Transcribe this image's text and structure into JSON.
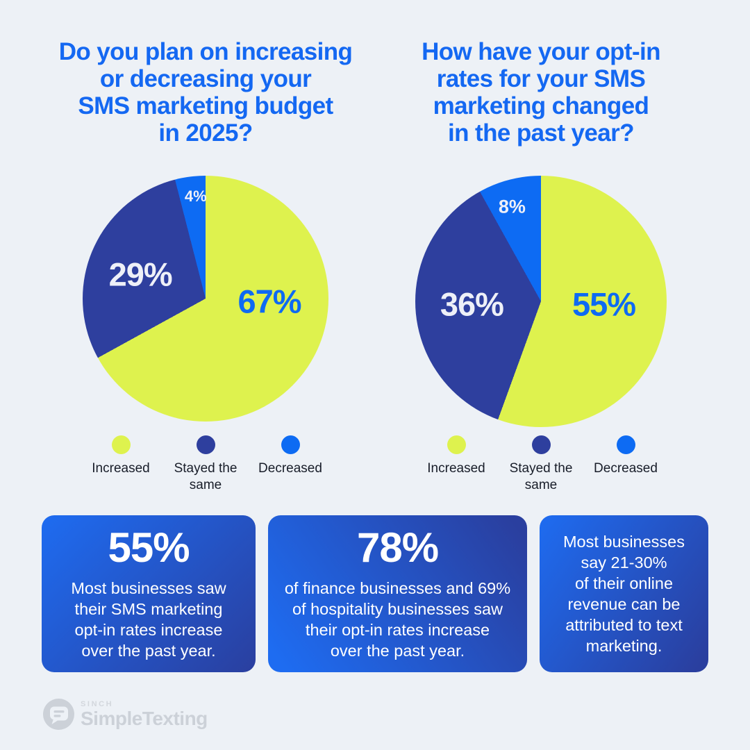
{
  "page": {
    "background": "#edf1f6"
  },
  "colors": {
    "title_blue": "#1468f2",
    "slice_lime": "#def24e",
    "slice_dark_blue": "#2e3f9e",
    "slice_bright_blue": "#0d6bf3",
    "card_gradient_from": "#1e6cf1",
    "card_gradient_to": "#2a3f9f",
    "legend_text": "#181d29",
    "logo_gray": "#ccd1d8"
  },
  "chart_data": [
    {
      "type": "pie",
      "title": "Do you plan on increasing\nor decreasing your\nSMS marketing budget\nin 2025?",
      "labels": [
        "Increased",
        "Stayed the same",
        "Decreased"
      ],
      "values": [
        67,
        29,
        4
      ],
      "value_labels": [
        "67%",
        "29%",
        "4%"
      ],
      "colors": [
        "#def24e",
        "#2e3f9e",
        "#0d6bf3"
      ],
      "start_angle_deg": 0,
      "direction": "clockwise",
      "legend_position": "bottom"
    },
    {
      "type": "pie",
      "title": "How have your opt-in\nrates for your SMS\nmarketing changed\nin the past year?",
      "labels": [
        "Increased",
        "Stayed the same",
        "Decreased"
      ],
      "values": [
        55,
        36,
        8
      ],
      "value_labels": [
        "55%",
        "36%",
        "8%"
      ],
      "colors": [
        "#def24e",
        "#2e3f9e",
        "#0d6bf3"
      ],
      "start_angle_deg": 0,
      "direction": "clockwise",
      "legend_position": "bottom"
    }
  ],
  "cards": [
    {
      "headline": "55%",
      "body": "Most businesses saw\ntheir SMS marketing\nopt-in rates increase\nover the past year."
    },
    {
      "headline": "78%",
      "body": "of finance businesses and 69%\nof hospitality businesses saw\ntheir opt-in rates increase\nover the past year."
    },
    {
      "headline": "",
      "body": "Most businesses\nsay 21-30%\nof their online\nrevenue can be\nattributed to text\nmarketing."
    }
  ],
  "footer": {
    "brand_small": "SINCH",
    "brand_name": "SimpleTexting"
  }
}
